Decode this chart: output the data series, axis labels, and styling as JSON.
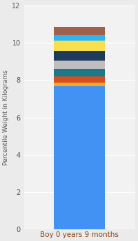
{
  "category": "Boy 0 years 9 months",
  "segments": [
    {
      "value": 7.7,
      "color": "#4292F4"
    },
    {
      "value": 0.18,
      "color": "#F5A820"
    },
    {
      "value": 0.32,
      "color": "#D94E1F"
    },
    {
      "value": 0.42,
      "color": "#1A7A8A"
    },
    {
      "value": 0.42,
      "color": "#BEBEBE"
    },
    {
      "value": 0.52,
      "color": "#1E3A5F"
    },
    {
      "value": 0.55,
      "color": "#F9E04B"
    },
    {
      "value": 0.32,
      "color": "#29B6F6"
    },
    {
      "value": 0.42,
      "color": "#A0614A"
    }
  ],
  "ylabel": "Percentile Weight in Kilograms",
  "ylim": [
    0,
    12
  ],
  "yticks": [
    0,
    2,
    4,
    6,
    8,
    10,
    12
  ],
  "background_color": "#EBEBEB",
  "plot_bg_color": "#F2F2F2",
  "bar_width": 0.55,
  "xlabel_fontsize": 7.5,
  "ylabel_fontsize": 6.5,
  "tick_fontsize": 7,
  "xlabel_color": "#8B4513"
}
